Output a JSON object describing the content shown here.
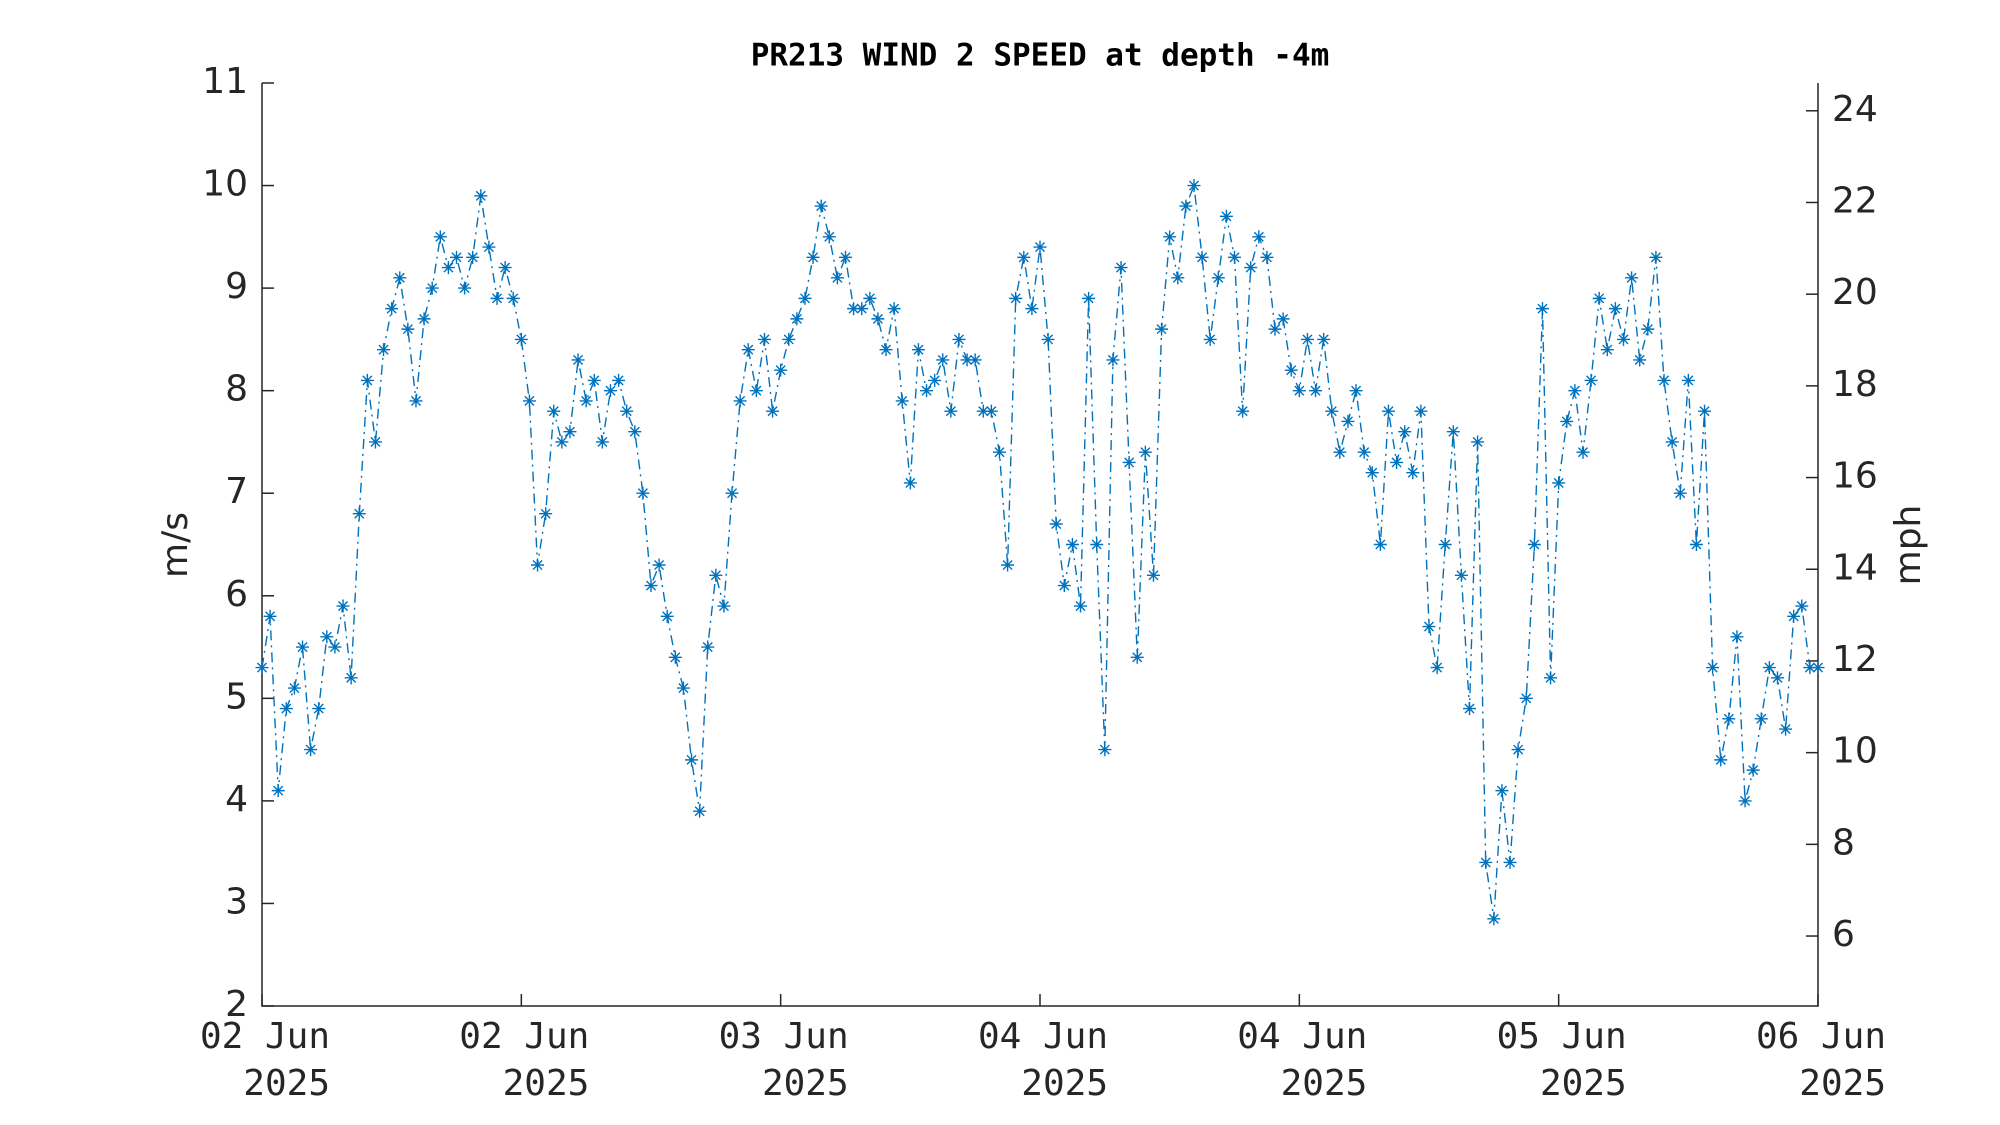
{
  "chart_data": {
    "type": "line",
    "title": "PR213 WIND 2 SPEED at depth -4m",
    "ylabel": "m/s",
    "y2label": "mph",
    "color": "#0072bd",
    "marker": "*",
    "linestyle": "dashdot",
    "xlim": [
      "2025-06-02T00:00",
      "2025-06-06T00:00"
    ],
    "xticks": [
      {
        "value": "2025-06-02T00:00",
        "label": [
          "02 Jun",
          "2025"
        ]
      },
      {
        "value": "2025-06-02T16:00",
        "label": [
          "02 Jun",
          "2025"
        ]
      },
      {
        "value": "2025-06-03T08:00",
        "label": [
          "03 Jun",
          "2025"
        ]
      },
      {
        "value": "2025-06-04T00:00",
        "label": [
          "04 Jun",
          "2025"
        ]
      },
      {
        "value": "2025-06-04T16:00",
        "label": [
          "04 Jun",
          "2025"
        ]
      },
      {
        "value": "2025-06-05T08:00",
        "label": [
          "05 Jun",
          "2025"
        ]
      },
      {
        "value": "2025-06-06T00:00",
        "label": [
          "06 Jun",
          "2025"
        ]
      }
    ],
    "ylim": [
      2,
      11
    ],
    "yticks": [
      2,
      3,
      4,
      5,
      6,
      7,
      8,
      9,
      10,
      11
    ],
    "y2lim": [
      4.474,
      24.606
    ],
    "y2ticks": [
      6,
      8,
      10,
      12,
      14,
      16,
      18,
      20,
      22,
      24
    ],
    "x": [
      "2025-06-02T00:00",
      "2025-06-02T00:30",
      "2025-06-02T01:00",
      "2025-06-02T01:30",
      "2025-06-02T02:00",
      "2025-06-02T02:30",
      "2025-06-02T03:00",
      "2025-06-02T03:30",
      "2025-06-02T04:00",
      "2025-06-02T04:30",
      "2025-06-02T05:00",
      "2025-06-02T05:30",
      "2025-06-02T06:00",
      "2025-06-02T06:30",
      "2025-06-02T07:00",
      "2025-06-02T07:30",
      "2025-06-02T08:00",
      "2025-06-02T08:30",
      "2025-06-02T09:00",
      "2025-06-02T09:30",
      "2025-06-02T10:00",
      "2025-06-02T10:30",
      "2025-06-02T11:00",
      "2025-06-02T11:30",
      "2025-06-02T12:00",
      "2025-06-02T12:30",
      "2025-06-02T13:00",
      "2025-06-02T13:30",
      "2025-06-02T14:00",
      "2025-06-02T14:30",
      "2025-06-02T15:00",
      "2025-06-02T15:30",
      "2025-06-02T16:00",
      "2025-06-02T16:30",
      "2025-06-02T17:00",
      "2025-06-02T17:30",
      "2025-06-02T18:00",
      "2025-06-02T18:30",
      "2025-06-02T19:00",
      "2025-06-02T19:30",
      "2025-06-02T20:00",
      "2025-06-02T20:30",
      "2025-06-02T21:00",
      "2025-06-02T21:30",
      "2025-06-02T22:00",
      "2025-06-02T22:30",
      "2025-06-02T23:00",
      "2025-06-02T23:30",
      "2025-06-03T00:00",
      "2025-06-03T00:30",
      "2025-06-03T01:00",
      "2025-06-03T01:30",
      "2025-06-03T02:00",
      "2025-06-03T02:30",
      "2025-06-03T03:00",
      "2025-06-03T03:30",
      "2025-06-03T04:00",
      "2025-06-03T04:30",
      "2025-06-03T05:00",
      "2025-06-03T05:30",
      "2025-06-03T06:00",
      "2025-06-03T06:30",
      "2025-06-03T07:00",
      "2025-06-03T07:30",
      "2025-06-03T08:00",
      "2025-06-03T08:30",
      "2025-06-03T09:00",
      "2025-06-03T09:30",
      "2025-06-03T10:00",
      "2025-06-03T10:30",
      "2025-06-03T11:00",
      "2025-06-03T11:30",
      "2025-06-03T12:00",
      "2025-06-03T12:30",
      "2025-06-03T13:00",
      "2025-06-03T13:30",
      "2025-06-03T14:00",
      "2025-06-03T14:30",
      "2025-06-03T15:00",
      "2025-06-03T15:30",
      "2025-06-03T16:00",
      "2025-06-03T16:30",
      "2025-06-03T17:00",
      "2025-06-03T17:30",
      "2025-06-03T18:00",
      "2025-06-03T18:30",
      "2025-06-03T19:00",
      "2025-06-03T19:30",
      "2025-06-03T20:00",
      "2025-06-03T20:30",
      "2025-06-03T21:00",
      "2025-06-03T21:30",
      "2025-06-03T22:00",
      "2025-06-03T22:30",
      "2025-06-03T23:00",
      "2025-06-03T23:30",
      "2025-06-04T00:00",
      "2025-06-04T00:30",
      "2025-06-04T01:00",
      "2025-06-04T01:30",
      "2025-06-04T02:00",
      "2025-06-04T02:30",
      "2025-06-04T03:00",
      "2025-06-04T03:30",
      "2025-06-04T04:00",
      "2025-06-04T04:30",
      "2025-06-04T05:00",
      "2025-06-04T05:30",
      "2025-06-04T06:00",
      "2025-06-04T06:30",
      "2025-06-04T07:00",
      "2025-06-04T07:30",
      "2025-06-04T08:00",
      "2025-06-04T08:30",
      "2025-06-04T09:00",
      "2025-06-04T09:30",
      "2025-06-04T10:00",
      "2025-06-04T10:30",
      "2025-06-04T11:00",
      "2025-06-04T11:30",
      "2025-06-04T12:00",
      "2025-06-04T12:30",
      "2025-06-04T13:00",
      "2025-06-04T13:30",
      "2025-06-04T14:00",
      "2025-06-04T14:30",
      "2025-06-04T15:00",
      "2025-06-04T15:30",
      "2025-06-04T16:00",
      "2025-06-04T16:30",
      "2025-06-04T17:00",
      "2025-06-04T17:30",
      "2025-06-04T18:00",
      "2025-06-04T18:30",
      "2025-06-04T19:00",
      "2025-06-04T19:30",
      "2025-06-04T20:00",
      "2025-06-04T20:30",
      "2025-06-04T21:00",
      "2025-06-04T21:30",
      "2025-06-04T22:00",
      "2025-06-04T22:30",
      "2025-06-04T23:00",
      "2025-06-04T23:30",
      "2025-06-05T00:00",
      "2025-06-05T00:30",
      "2025-06-05T01:00",
      "2025-06-05T01:30",
      "2025-06-05T02:00",
      "2025-06-05T02:30",
      "2025-06-05T03:00",
      "2025-06-05T03:30",
      "2025-06-05T04:00",
      "2025-06-05T04:30",
      "2025-06-05T05:00",
      "2025-06-05T05:30",
      "2025-06-05T06:00",
      "2025-06-05T06:30",
      "2025-06-05T07:00",
      "2025-06-05T07:30",
      "2025-06-05T08:00",
      "2025-06-05T08:30",
      "2025-06-05T09:00",
      "2025-06-05T09:30",
      "2025-06-05T10:00",
      "2025-06-05T10:30",
      "2025-06-05T11:00",
      "2025-06-05T11:30",
      "2025-06-05T12:00",
      "2025-06-05T12:30",
      "2025-06-05T13:00",
      "2025-06-05T13:30",
      "2025-06-05T14:00",
      "2025-06-05T14:30",
      "2025-06-05T15:00",
      "2025-06-05T15:30",
      "2025-06-05T16:00",
      "2025-06-05T16:30",
      "2025-06-05T17:00",
      "2025-06-05T17:30",
      "2025-06-05T18:00",
      "2025-06-05T18:30",
      "2025-06-05T19:00",
      "2025-06-05T19:30",
      "2025-06-05T20:00",
      "2025-06-05T20:30",
      "2025-06-05T21:00",
      "2025-06-05T21:30",
      "2025-06-05T22:00",
      "2025-06-05T22:30",
      "2025-06-05T23:00",
      "2025-06-05T23:30",
      "2025-06-06T00:00"
    ],
    "values": [
      5.3,
      5.8,
      4.1,
      4.9,
      5.1,
      5.5,
      4.5,
      4.9,
      5.6,
      5.5,
      5.9,
      5.2,
      6.8,
      8.1,
      7.5,
      8.4,
      8.8,
      9.1,
      8.6,
      7.9,
      8.7,
      9.0,
      9.5,
      9.2,
      9.3,
      9.0,
      9.3,
      9.9,
      9.4,
      8.9,
      9.2,
      8.9,
      8.5,
      7.9,
      6.3,
      6.8,
      7.8,
      7.5,
      7.6,
      8.3,
      7.9,
      8.1,
      7.5,
      8.0,
      8.1,
      7.8,
      7.6,
      7.0,
      6.1,
      6.3,
      5.8,
      5.4,
      5.1,
      4.4,
      3.9,
      5.5,
      6.2,
      5.9,
      7.0,
      7.9,
      8.4,
      8.0,
      8.5,
      7.8,
      8.2,
      8.5,
      8.7,
      8.9,
      9.3,
      9.8,
      9.5,
      9.1,
      9.3,
      8.8,
      8.8,
      8.9,
      8.7,
      8.4,
      8.8,
      7.9,
      7.1,
      8.4,
      8.0,
      8.1,
      8.3,
      7.8,
      8.5,
      8.3,
      8.3,
      7.8,
      7.8,
      7.4,
      6.3,
      8.9,
      9.3,
      8.8,
      9.4,
      8.5,
      6.7,
      6.1,
      6.5,
      5.9,
      8.9,
      6.5,
      4.5,
      8.3,
      9.2,
      7.3,
      5.4,
      7.4,
      6.2,
      8.6,
      9.5,
      9.1,
      9.8,
      10.0,
      9.3,
      8.5,
      9.1,
      9.7,
      9.3,
      7.8,
      9.2,
      9.5,
      9.3,
      8.6,
      8.7,
      8.2,
      8.0,
      8.5,
      8.0,
      8.5,
      7.8,
      7.4,
      7.7,
      8.0,
      7.4,
      7.2,
      6.5,
      7.8,
      7.3,
      7.6,
      7.2,
      7.8,
      5.7,
      5.3,
      6.5,
      7.6,
      6.2,
      4.9,
      7.5,
      3.4,
      2.85,
      4.1,
      3.4,
      4.5,
      5.0,
      6.5,
      8.8,
      5.2,
      7.1,
      7.7,
      8.0,
      7.4,
      8.1,
      8.9,
      8.4,
      8.8,
      8.5,
      9.1,
      8.3,
      8.6,
      9.3,
      8.1,
      7.5,
      7.0,
      8.1,
      6.5,
      7.8,
      5.3,
      4.4,
      4.8,
      5.6,
      4.0,
      4.3,
      4.8,
      5.3,
      5.2,
      4.7,
      5.8,
      5.9,
      5.3,
      5.3
    ]
  }
}
